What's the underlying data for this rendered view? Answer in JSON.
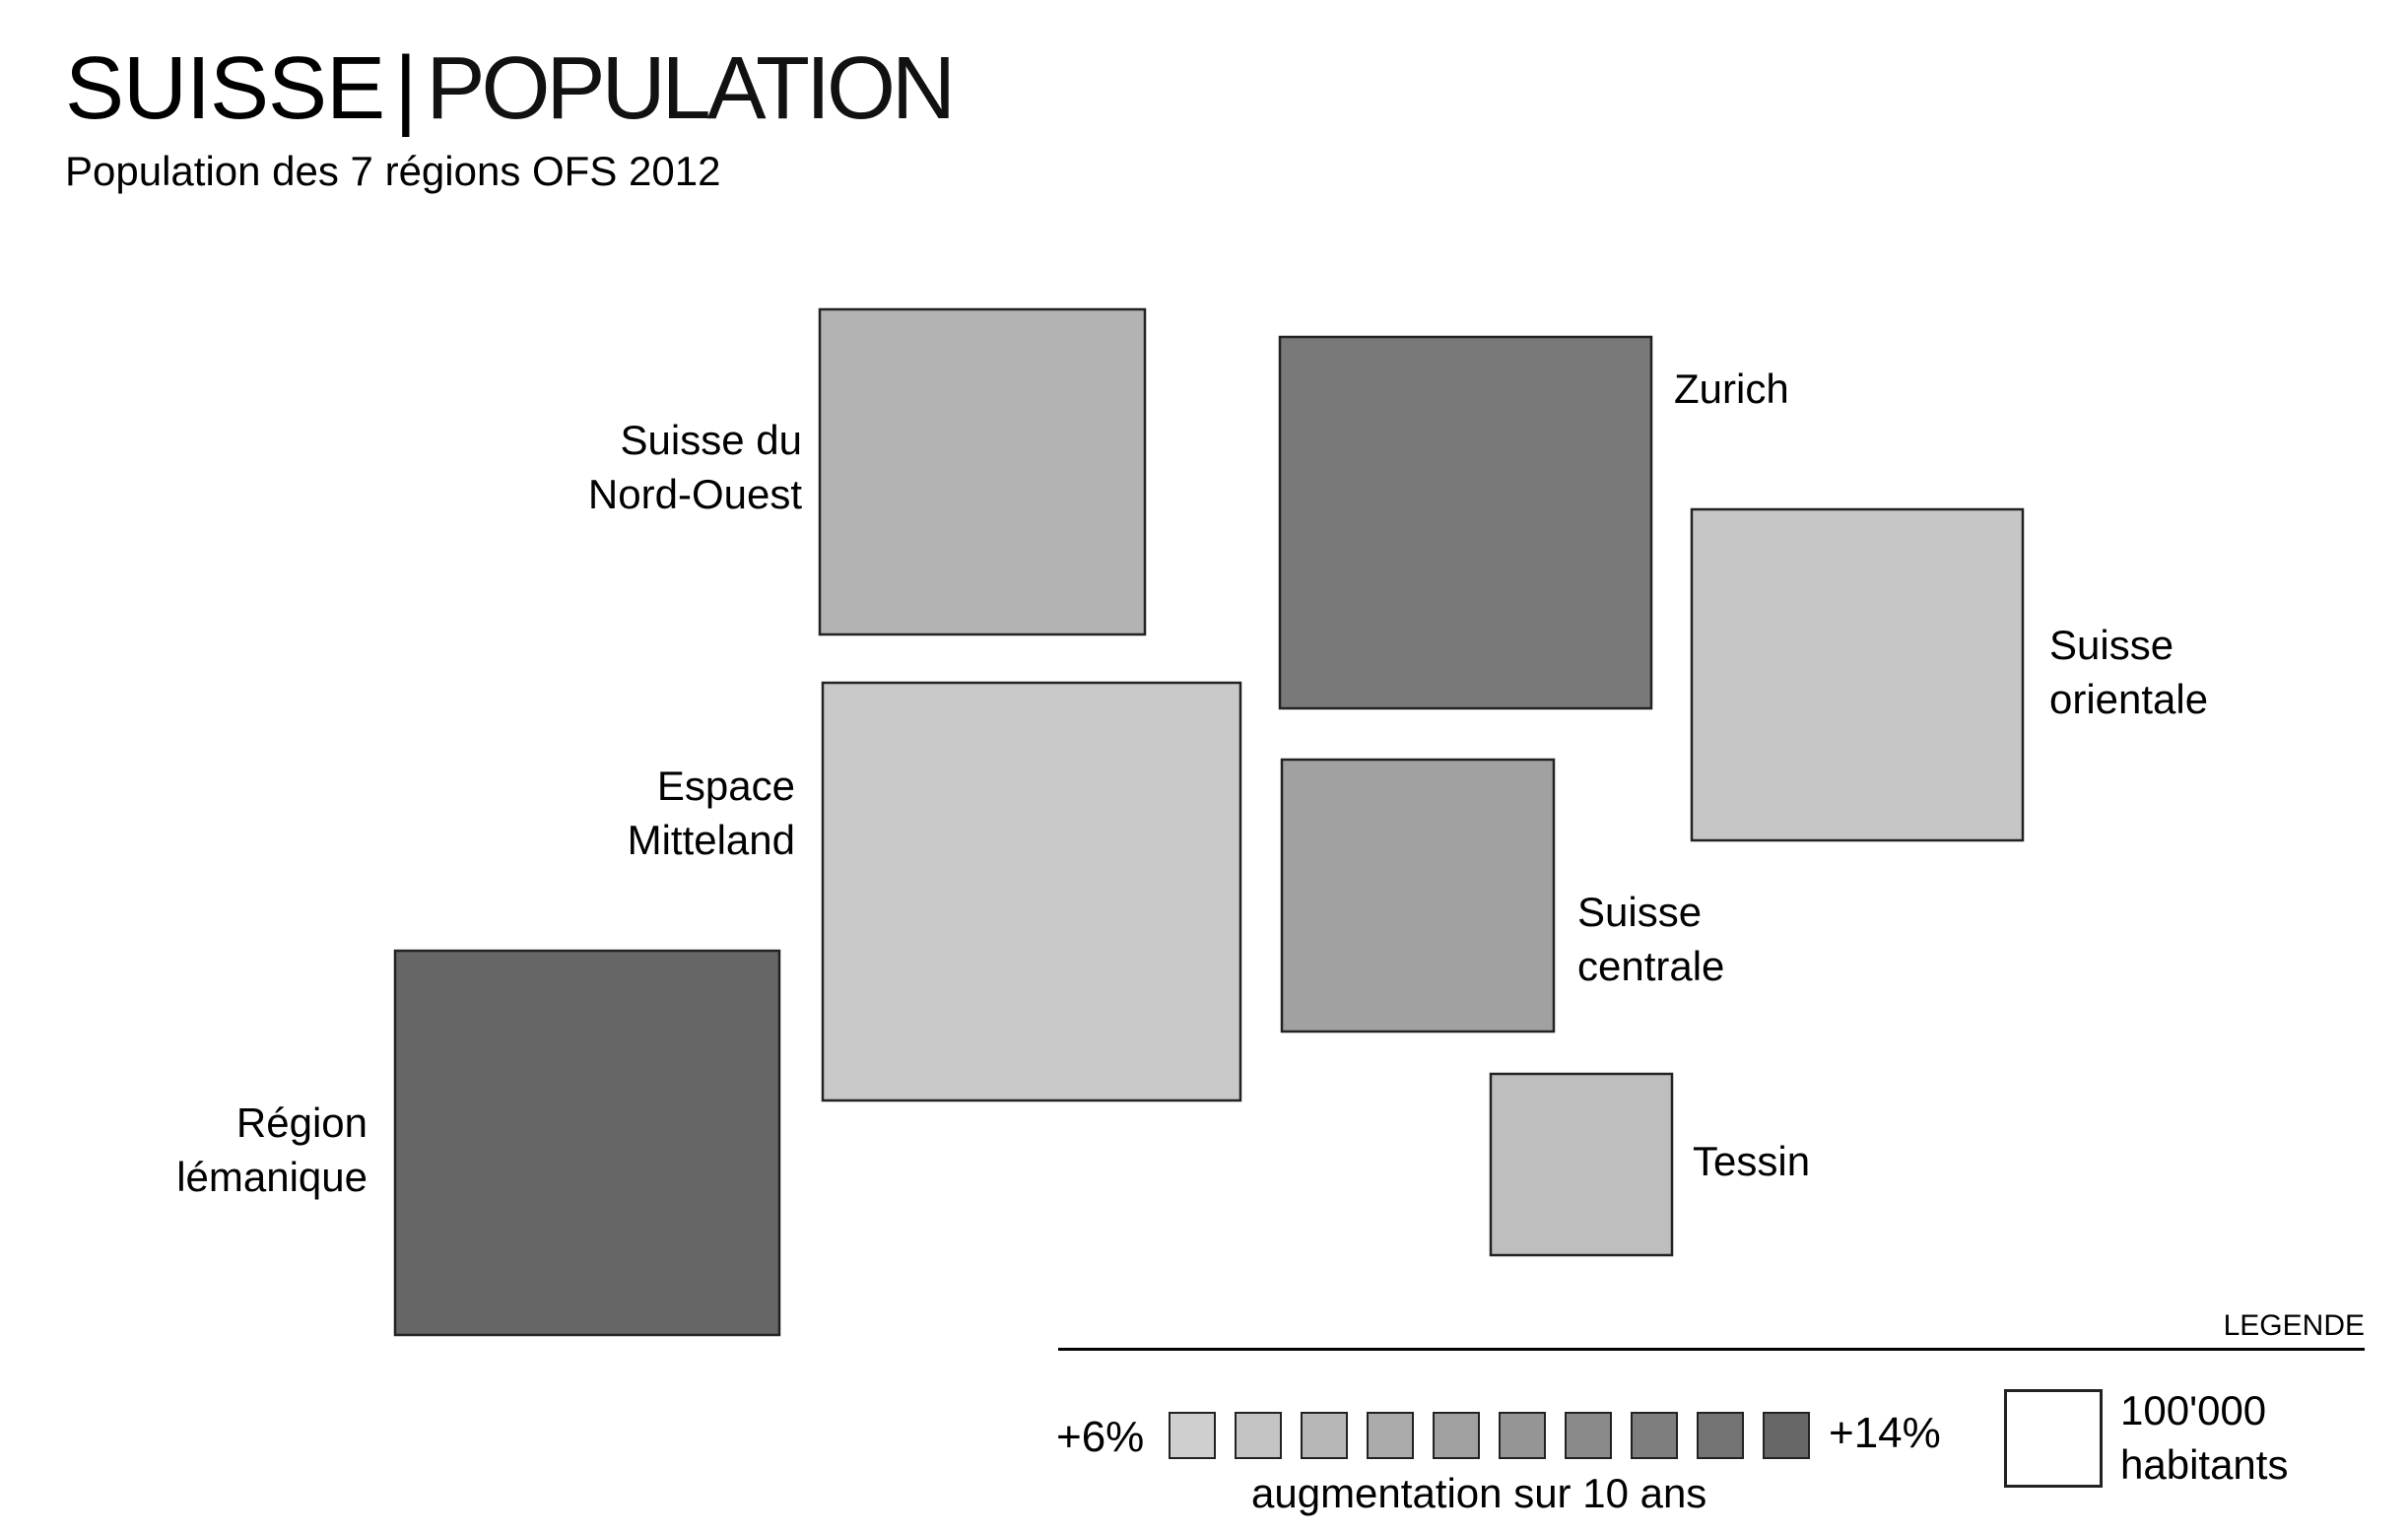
{
  "header": {
    "title_main": "SUISSE",
    "title_separator": "|",
    "title_secondary": "POPULATION",
    "subtitle": "Population des 7 régions OFS 2012"
  },
  "regions": [
    {
      "id": "nord-ouest",
      "label_lines": [
        "Suisse du",
        "Nord-Ouest"
      ],
      "fill": "#b3b3b3"
    },
    {
      "id": "zurich",
      "label_lines": [
        "Zurich"
      ],
      "fill": "#797979"
    },
    {
      "id": "orientale",
      "label_lines": [
        "Suisse",
        "orientale"
      ],
      "fill": "#c6c6c6"
    },
    {
      "id": "mitteland",
      "label_lines": [
        "Espace",
        "Mitteland"
      ],
      "fill": "#c8c8c8"
    },
    {
      "id": "centrale",
      "label_lines": [
        "Suisse",
        "centrale"
      ],
      "fill": "#a1a1a1"
    },
    {
      "id": "lemanique",
      "label_lines": [
        "Région",
        "lémanique"
      ],
      "fill": "#666666"
    },
    {
      "id": "tessin",
      "label_lines": [
        "Tessin"
      ],
      "fill": "#bebebe"
    }
  ],
  "legend": {
    "title": "LEGENDE",
    "scale_low": "+6%",
    "scale_high": "+14%",
    "scale_caption": "augmentation sur 10 ans",
    "scale_colors": [
      "#cfcfcf",
      "#c3c3c3",
      "#b7b7b7",
      "#ababab",
      "#a0a0a0",
      "#959595",
      "#8a8a8a",
      "#7e7e7e",
      "#737373",
      "#676767"
    ],
    "unit_label_lines": [
      "100'000",
      "habitants"
    ]
  }
}
